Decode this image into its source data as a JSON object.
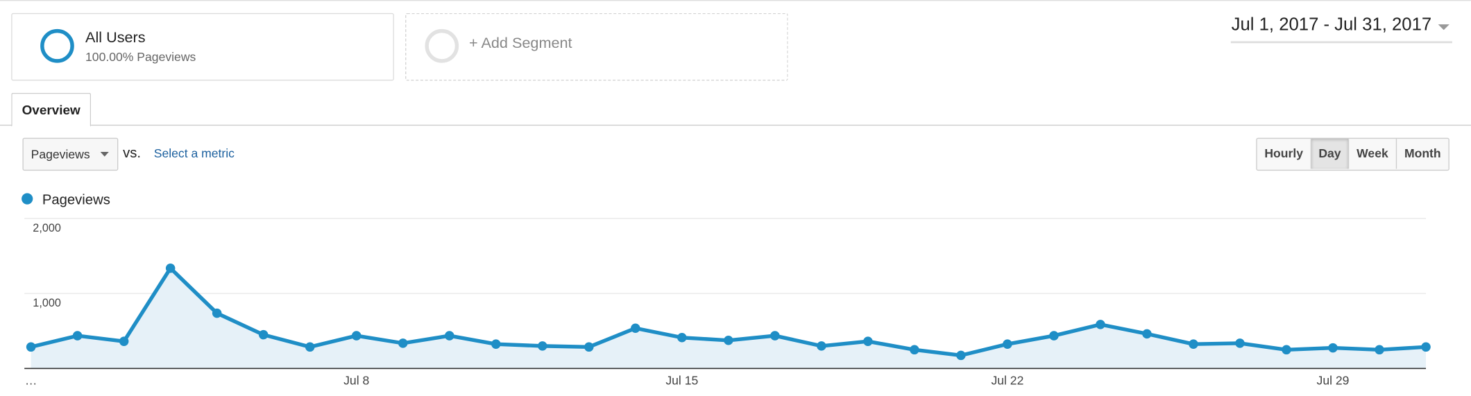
{
  "segments": [
    {
      "name": "All Users",
      "detail": "100.00% Pageviews"
    }
  ],
  "add_segment": "+ Add Segment",
  "date_range": "Jul 1, 2017 - Jul 31, 2017",
  "tabs": [
    "Overview"
  ],
  "metric": "Pageviews",
  "vs": "vs.",
  "select_metric": "Select a metric",
  "granularity": [
    "Hourly",
    "Day",
    "Week",
    "Month"
  ],
  "chart_data": {
    "type": "line",
    "categories": [
      "…",
      null,
      null,
      null,
      null,
      null,
      null,
      "Jul 8",
      null,
      null,
      null,
      null,
      null,
      null,
      "Jul 15",
      null,
      null,
      null,
      null,
      null,
      null,
      "Jul 22",
      null,
      null,
      null,
      null,
      null,
      null,
      "Jul 29",
      null,
      null
    ],
    "series": [
      {
        "name": "Pageviews",
        "color": "#1f8ec6",
        "values": [
          287,
          437,
          362,
          1337,
          737,
          450,
          287,
          437,
          337,
          437,
          325,
          300,
          287,
          537,
          412,
          375,
          437,
          300,
          362,
          250,
          175,
          325,
          437,
          587,
          462,
          325,
          337,
          250,
          275,
          250,
          287
        ]
      }
    ],
    "ylim": [
      0,
      2000
    ],
    "yticks": [
      {
        "value": 1000,
        "label": "1,000"
      },
      {
        "value": 2000,
        "label": "2,000"
      }
    ],
    "grid": true
  }
}
